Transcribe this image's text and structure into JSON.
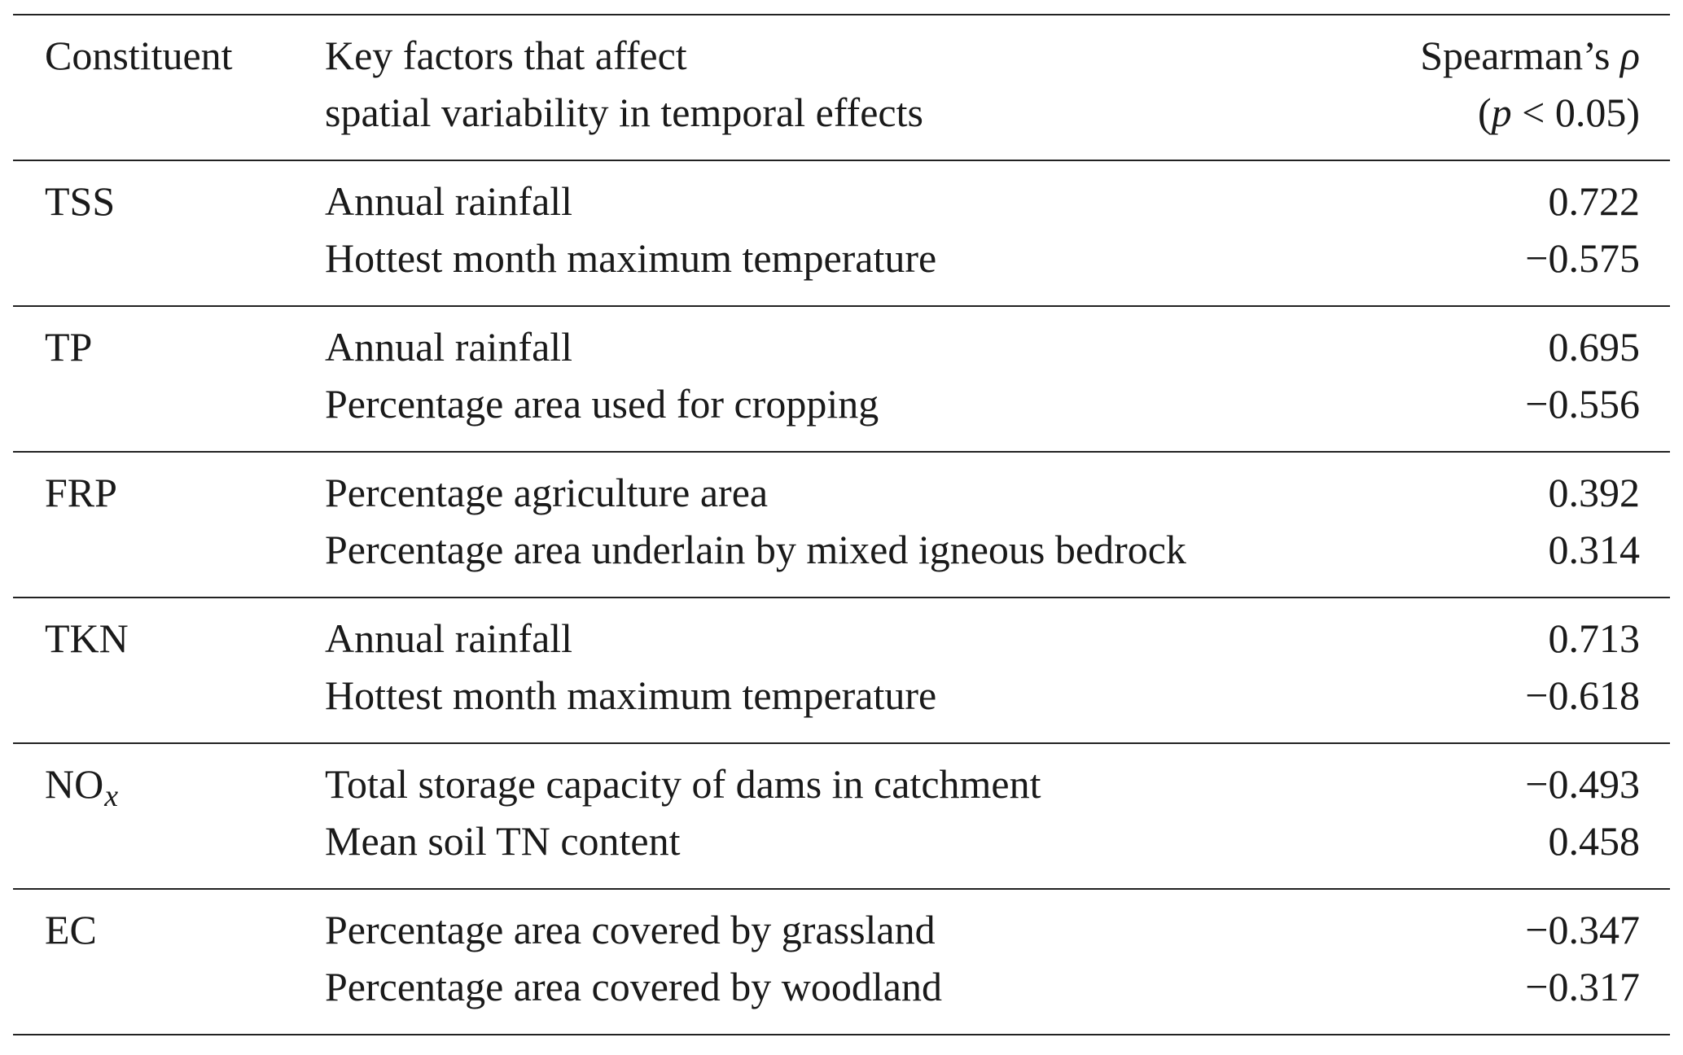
{
  "header": {
    "col1": "Constituent",
    "col2_line1": "Key factors that affect",
    "col2_line2": "spatial variability in temporal effects",
    "col3_line1_text": "Spearman’s ",
    "col3_line1_symbol": "ρ",
    "col3_line2_open": "(",
    "col3_line2_p": "p",
    "col3_line2_rest": " < 0.05)"
  },
  "rows": [
    {
      "constituent": "TSS",
      "factors": [
        {
          "name": "Annual rainfall",
          "rho": "0.722"
        },
        {
          "name": "Hottest month maximum temperature",
          "rho": "−0.575"
        }
      ]
    },
    {
      "constituent": "TP",
      "factors": [
        {
          "name": "Annual rainfall",
          "rho": "0.695"
        },
        {
          "name": "Percentage area used for cropping",
          "rho": "−0.556"
        }
      ]
    },
    {
      "constituent": "FRP",
      "factors": [
        {
          "name": "Percentage agriculture area",
          "rho": "0.392"
        },
        {
          "name": "Percentage area underlain by mixed igneous bedrock",
          "rho": "0.314"
        }
      ]
    },
    {
      "constituent": "TKN",
      "factors": [
        {
          "name": "Annual rainfall",
          "rho": "0.713"
        },
        {
          "name": "Hottest month maximum temperature",
          "rho": "−0.618"
        }
      ]
    },
    {
      "constituent": "NO",
      "constituent_sub": "x",
      "factors": [
        {
          "name": "Total storage capacity of dams in catchment",
          "rho": "−0.493"
        },
        {
          "name": "Mean soil TN content",
          "rho": "0.458"
        }
      ]
    },
    {
      "constituent": "EC",
      "factors": [
        {
          "name": "Percentage area covered by grassland",
          "rho": "−0.347"
        },
        {
          "name": "Percentage area covered by woodland",
          "rho": "−0.317"
        }
      ]
    }
  ]
}
